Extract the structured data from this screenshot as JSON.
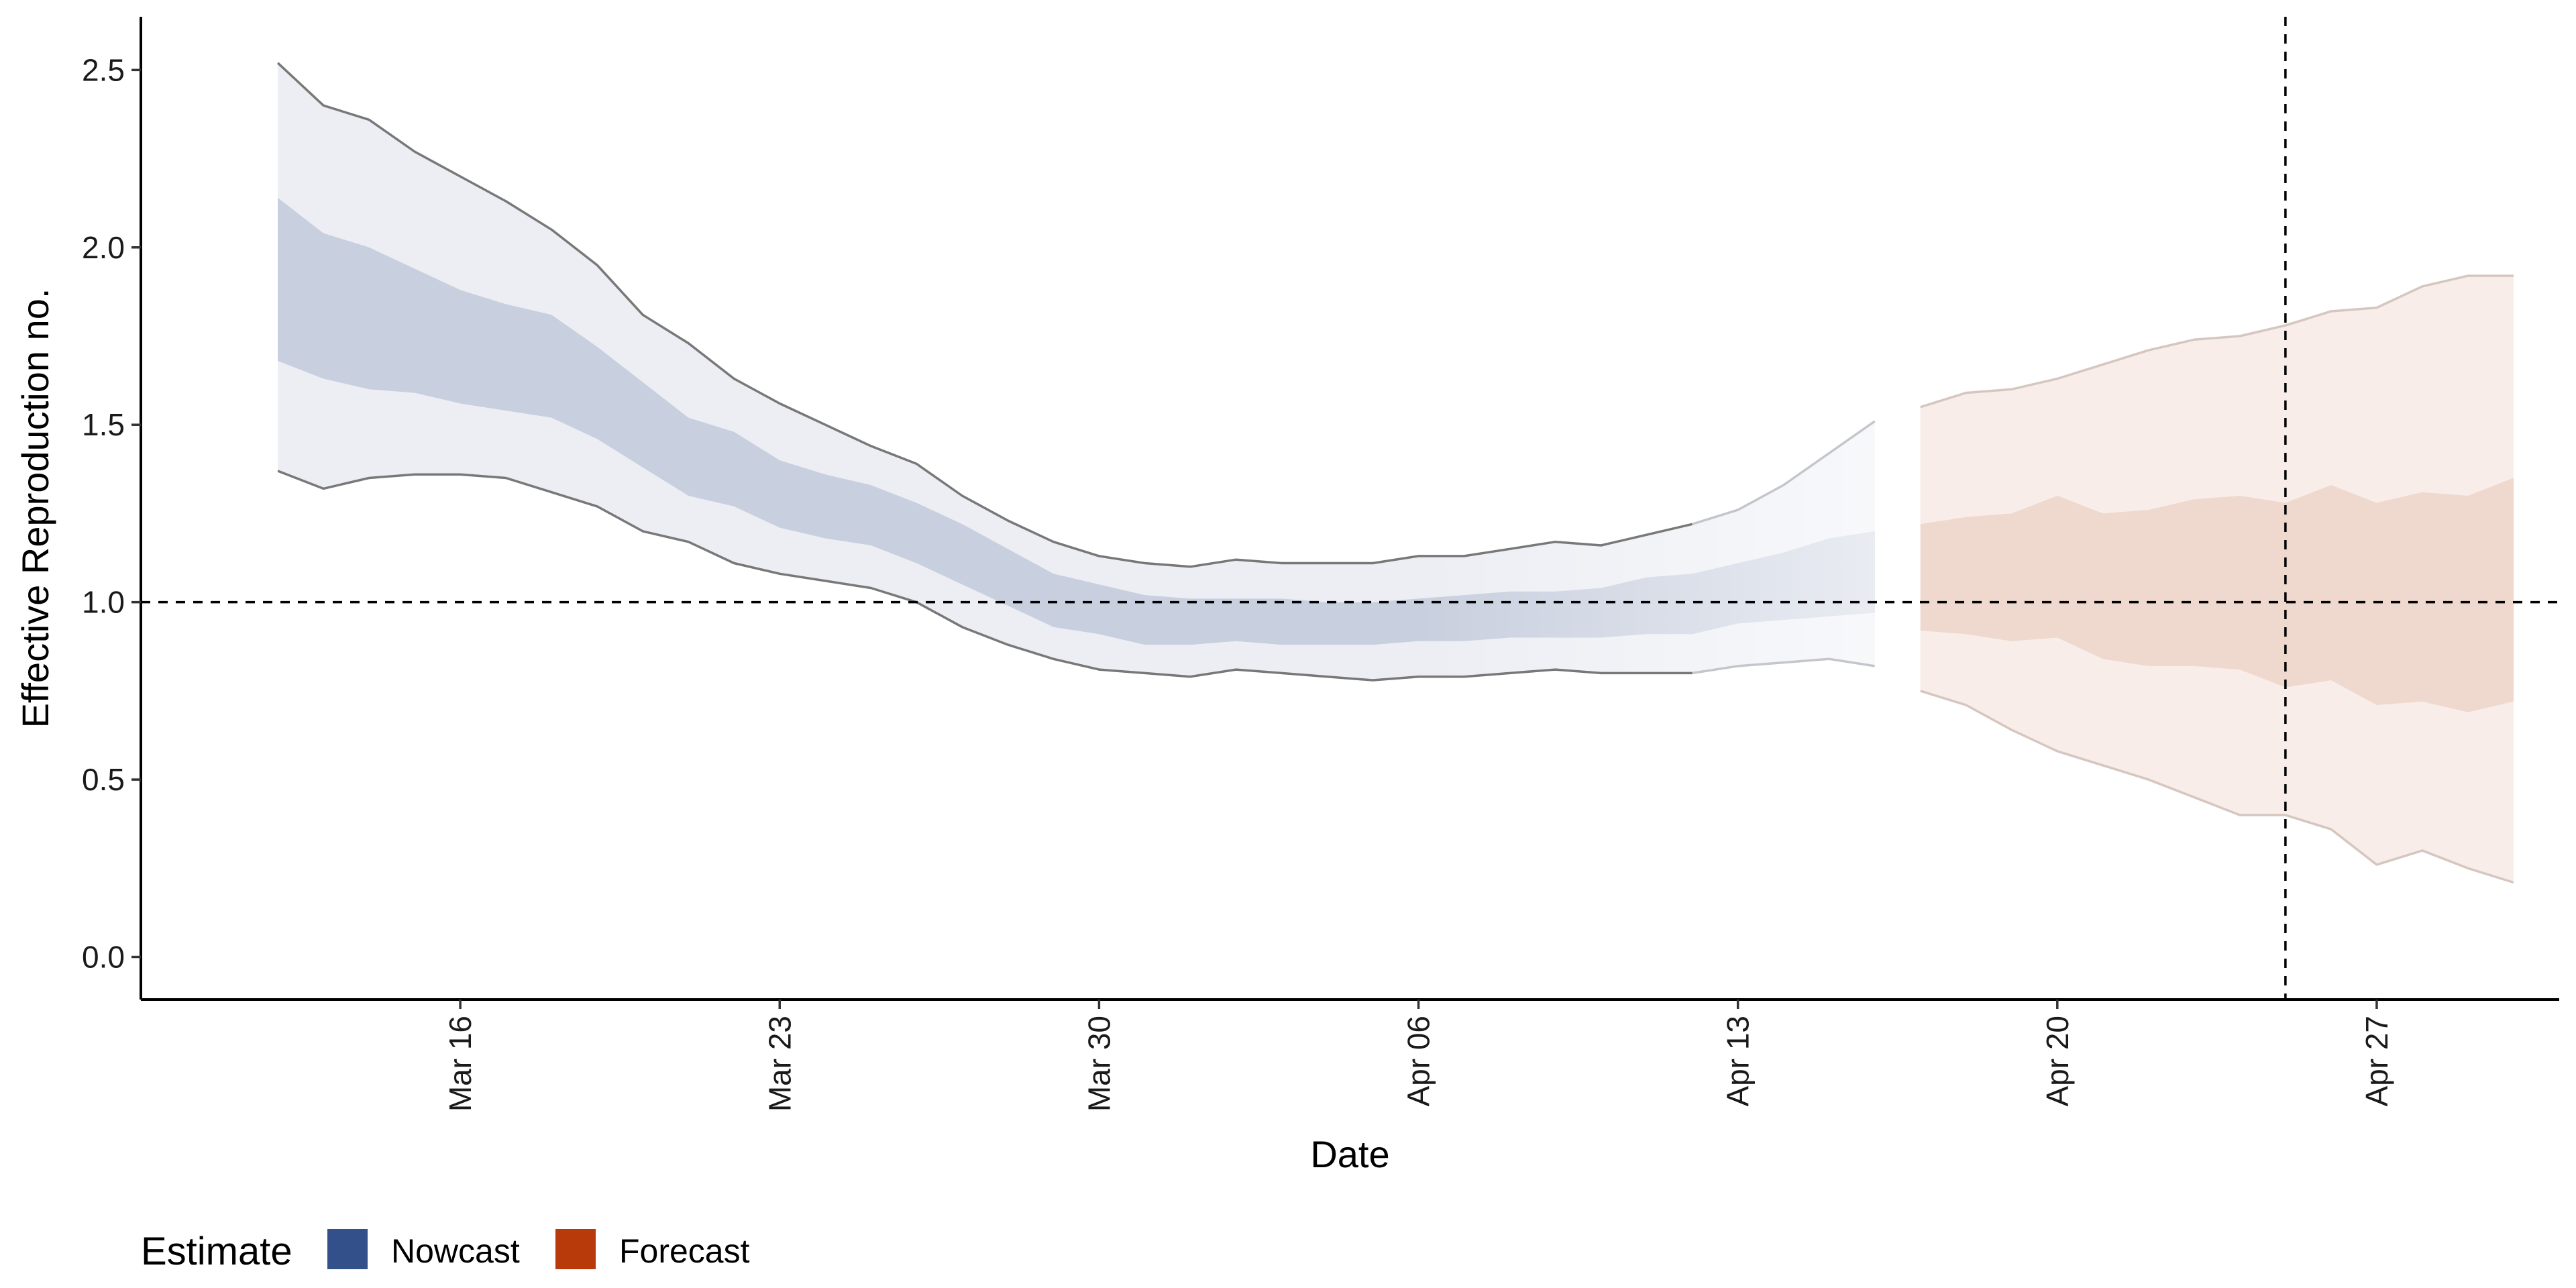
{
  "chart_data": {
    "type": "area",
    "xlabel": "Date",
    "ylabel": "Effective Reproduction no.",
    "x_ticks": [
      "Mar 16",
      "Mar 23",
      "Mar 30",
      "Apr 06",
      "Apr 13",
      "Apr 20",
      "Apr 27"
    ],
    "y_ticks": [
      "0.0",
      "0.5",
      "1.0",
      "1.5",
      "2.0",
      "2.5"
    ],
    "ylim": [
      -0.12,
      2.65
    ],
    "xlim": [
      "2020-03-09",
      "2020-05-01"
    ],
    "reference_lines": {
      "horizontal_y": 1.0,
      "vertical_x": "2020-04-25"
    },
    "legend": {
      "title": "Estimate",
      "position": "bottom-left",
      "entries": [
        {
          "label": "Nowcast",
          "color": "#34508b"
        },
        {
          "label": "Forecast",
          "color": "#b83a0a"
        }
      ]
    },
    "colors": {
      "nowcast_outer": "#eceef4",
      "nowcast_inner": "#c8cfde",
      "nowcast_edge": "#787878",
      "forecast_outer": "#f8ede8",
      "forecast_inner": "#efd8cd",
      "forecast_edge": "#d5c6c0"
    },
    "series": [
      {
        "name": "Nowcast",
        "x": [
          "2020-03-12",
          "2020-03-13",
          "2020-03-14",
          "2020-03-15",
          "2020-03-16",
          "2020-03-17",
          "2020-03-18",
          "2020-03-19",
          "2020-03-20",
          "2020-03-21",
          "2020-03-22",
          "2020-03-23",
          "2020-03-24",
          "2020-03-25",
          "2020-03-26",
          "2020-03-27",
          "2020-03-28",
          "2020-03-29",
          "2020-03-30",
          "2020-03-31",
          "2020-04-01",
          "2020-04-02",
          "2020-04-03",
          "2020-04-04",
          "2020-04-05",
          "2020-04-06",
          "2020-04-07",
          "2020-04-08",
          "2020-04-09",
          "2020-04-10",
          "2020-04-11",
          "2020-04-12",
          "2020-04-13",
          "2020-04-14",
          "2020-04-15",
          "2020-04-16"
        ],
        "upper_90": [
          2.52,
          2.4,
          2.36,
          2.27,
          2.2,
          2.13,
          2.05,
          1.95,
          1.81,
          1.73,
          1.63,
          1.56,
          1.5,
          1.44,
          1.39,
          1.3,
          1.23,
          1.17,
          1.13,
          1.11,
          1.1,
          1.12,
          1.11,
          1.11,
          1.11,
          1.13,
          1.13,
          1.15,
          1.17,
          1.16,
          1.19,
          1.22,
          1.26,
          1.33,
          1.42,
          1.51
        ],
        "upper_50": [
          2.14,
          2.04,
          2.0,
          1.94,
          1.88,
          1.84,
          1.81,
          1.72,
          1.62,
          1.52,
          1.48,
          1.4,
          1.36,
          1.33,
          1.28,
          1.22,
          1.15,
          1.08,
          1.05,
          1.02,
          1.01,
          1.01,
          1.01,
          1.0,
          1.0,
          1.01,
          1.02,
          1.03,
          1.03,
          1.04,
          1.07,
          1.08,
          1.11,
          1.14,
          1.18,
          1.2
        ],
        "lower_50": [
          1.68,
          1.63,
          1.6,
          1.59,
          1.56,
          1.54,
          1.52,
          1.46,
          1.38,
          1.3,
          1.27,
          1.21,
          1.18,
          1.16,
          1.11,
          1.05,
          0.99,
          0.93,
          0.91,
          0.88,
          0.88,
          0.89,
          0.88,
          0.88,
          0.88,
          0.89,
          0.89,
          0.9,
          0.9,
          0.9,
          0.91,
          0.91,
          0.94,
          0.95,
          0.96,
          0.97
        ],
        "lower_90": [
          1.37,
          1.32,
          1.35,
          1.36,
          1.36,
          1.35,
          1.31,
          1.27,
          1.2,
          1.17,
          1.11,
          1.08,
          1.06,
          1.04,
          1.0,
          0.93,
          0.88,
          0.84,
          0.81,
          0.8,
          0.79,
          0.81,
          0.8,
          0.79,
          0.78,
          0.79,
          0.79,
          0.8,
          0.81,
          0.8,
          0.8,
          0.8,
          0.82,
          0.83,
          0.84,
          0.82
        ]
      },
      {
        "name": "Forecast",
        "x": [
          "2020-04-17",
          "2020-04-18",
          "2020-04-19",
          "2020-04-20",
          "2020-04-21",
          "2020-04-22",
          "2020-04-23",
          "2020-04-24",
          "2020-04-25",
          "2020-04-26",
          "2020-04-27",
          "2020-04-28",
          "2020-04-29",
          "2020-04-30"
        ],
        "upper_90": [
          1.55,
          1.59,
          1.6,
          1.63,
          1.67,
          1.71,
          1.74,
          1.75,
          1.78,
          1.82,
          1.83,
          1.89,
          1.92,
          1.92
        ],
        "upper_50": [
          1.22,
          1.24,
          1.25,
          1.3,
          1.25,
          1.26,
          1.29,
          1.3,
          1.28,
          1.33,
          1.28,
          1.31,
          1.3,
          1.35
        ],
        "lower_50": [
          0.92,
          0.91,
          0.89,
          0.9,
          0.84,
          0.82,
          0.82,
          0.81,
          0.76,
          0.78,
          0.71,
          0.72,
          0.69,
          0.72
        ],
        "lower_90": [
          0.75,
          0.71,
          0.64,
          0.58,
          0.54,
          0.5,
          0.45,
          0.4,
          0.4,
          0.36,
          0.26,
          0.3,
          0.25,
          0.21
        ]
      }
    ]
  }
}
